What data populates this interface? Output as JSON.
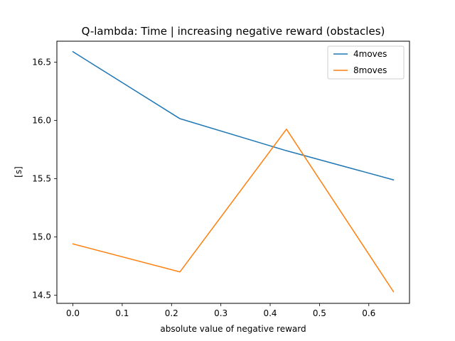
{
  "chart_data": {
    "type": "line",
    "title": "Q-lambda: Time | increasing negative reward (obstacles)",
    "xlabel": "absolute value of negative reward",
    "ylabel": "[s]",
    "xlim": [
      -0.0325,
      0.6825
    ],
    "ylim": [
      14.43,
      16.68
    ],
    "xticks": [
      0.0,
      0.1,
      0.2,
      0.3,
      0.4,
      0.5,
      0.6
    ],
    "xtick_labels": [
      "0.0",
      "0.1",
      "0.2",
      "0.3",
      "0.4",
      "0.5",
      "0.6"
    ],
    "yticks": [
      14.5,
      15.0,
      15.5,
      16.0,
      16.5
    ],
    "ytick_labels": [
      "14.5",
      "15.0",
      "15.5",
      "16.0",
      "16.5"
    ],
    "grid": false,
    "legend_position": "top-right",
    "series": [
      {
        "name": "4moves",
        "color": "#1f77b4",
        "x": [
          0.0,
          0.217,
          0.433,
          0.65
        ],
        "y": [
          16.59,
          16.015,
          15.74,
          15.49
        ]
      },
      {
        "name": "8moves",
        "color": "#ff7f0e",
        "x": [
          0.0,
          0.217,
          0.433,
          0.65
        ],
        "y": [
          14.94,
          14.7,
          15.925,
          14.53
        ]
      }
    ]
  }
}
